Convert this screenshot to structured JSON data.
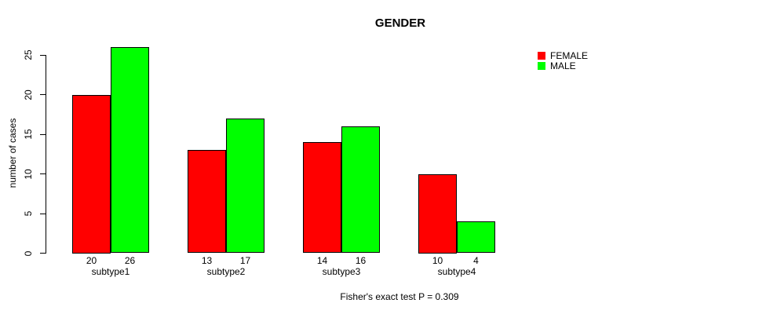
{
  "figure": {
    "background": "#FFFFFF",
    "text_color": "#000000"
  },
  "chart_data": {
    "type": "bar",
    "title": "GENDER",
    "categories": [
      "subtype1",
      "subtype2",
      "subtype3",
      "subtype4"
    ],
    "series": [
      {
        "name": "FEMALE",
        "color": "#FF0000",
        "values": [
          20,
          13,
          14,
          10
        ]
      },
      {
        "name": "MALE",
        "color": "#00FF00",
        "values": [
          26,
          17,
          16,
          4
        ]
      }
    ],
    "xlabel": "",
    "ylabel": "number of cases",
    "ylim": [
      0,
      26
    ],
    "yticks": [
      0,
      5,
      10,
      15,
      20,
      25
    ],
    "grid": false,
    "show_bar_values": true,
    "bar_border_color": "#000000",
    "legend_position": "top-right",
    "caption": "Fisher's exact test P = 0.309"
  }
}
